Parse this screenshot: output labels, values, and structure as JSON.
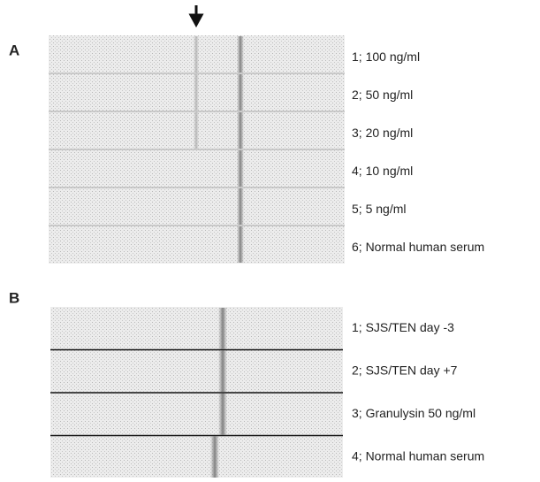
{
  "panels": [
    {
      "label": "A",
      "rows": [
        "1; 100 ng/ml",
        "2; 50 ng/ml",
        "3; 20 ng/ml",
        "4; 10 ng/ml",
        "5; 5 ng/ml",
        "6; Normal human serum"
      ]
    },
    {
      "label": "B",
      "rows": [
        "1; SJS/TEN day -3",
        "2; SJS/TEN day +7",
        "3; Granulysin 50 ng/ml",
        "4; Normal human serum"
      ]
    }
  ]
}
